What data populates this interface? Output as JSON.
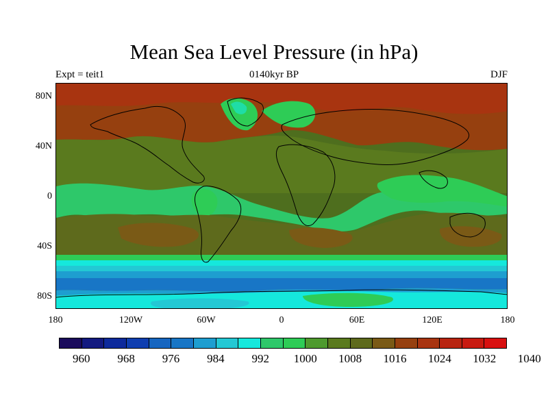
{
  "title": "Mean Sea Level Pressure (in hPa)",
  "subtitle_left": "Expt = teit1",
  "subtitle_center": "0140kyr BP",
  "subtitle_right": "DJF",
  "map": {
    "lon_range": [
      -180,
      180
    ],
    "lat_range": [
      -90,
      90
    ],
    "lat_ticks": [
      {
        "value": 80,
        "label": "80N"
      },
      {
        "value": 40,
        "label": "40N"
      },
      {
        "value": 0,
        "label": "0"
      },
      {
        "value": -40,
        "label": "40S"
      },
      {
        "value": -80,
        "label": "80S"
      }
    ],
    "lon_ticks": [
      {
        "value": -180,
        "label": "180"
      },
      {
        "value": -120,
        "label": "120W"
      },
      {
        "value": -60,
        "label": "60W"
      },
      {
        "value": 0,
        "label": "0"
      },
      {
        "value": 60,
        "label": "60E"
      },
      {
        "value": 120,
        "label": "120E"
      },
      {
        "value": 180,
        "label": "180"
      }
    ]
  },
  "colorbar": {
    "colors": [
      "#1a0b5c",
      "#131a80",
      "#0d2a9c",
      "#0f3eb0",
      "#1565c0",
      "#1876c6",
      "#1e9ed0",
      "#23c8d4",
      "#15e8dc",
      "#2ec86a",
      "#2ecc56",
      "#4e9a2e",
      "#5a7a1e",
      "#5e6a1c",
      "#7a5a16",
      "#96400f",
      "#a83410",
      "#b82410",
      "#c81a10",
      "#d81010"
    ],
    "labels": [
      "960",
      "968",
      "976",
      "984",
      "992",
      "1000",
      "1008",
      "1016",
      "1024",
      "1032",
      "1040"
    ]
  }
}
